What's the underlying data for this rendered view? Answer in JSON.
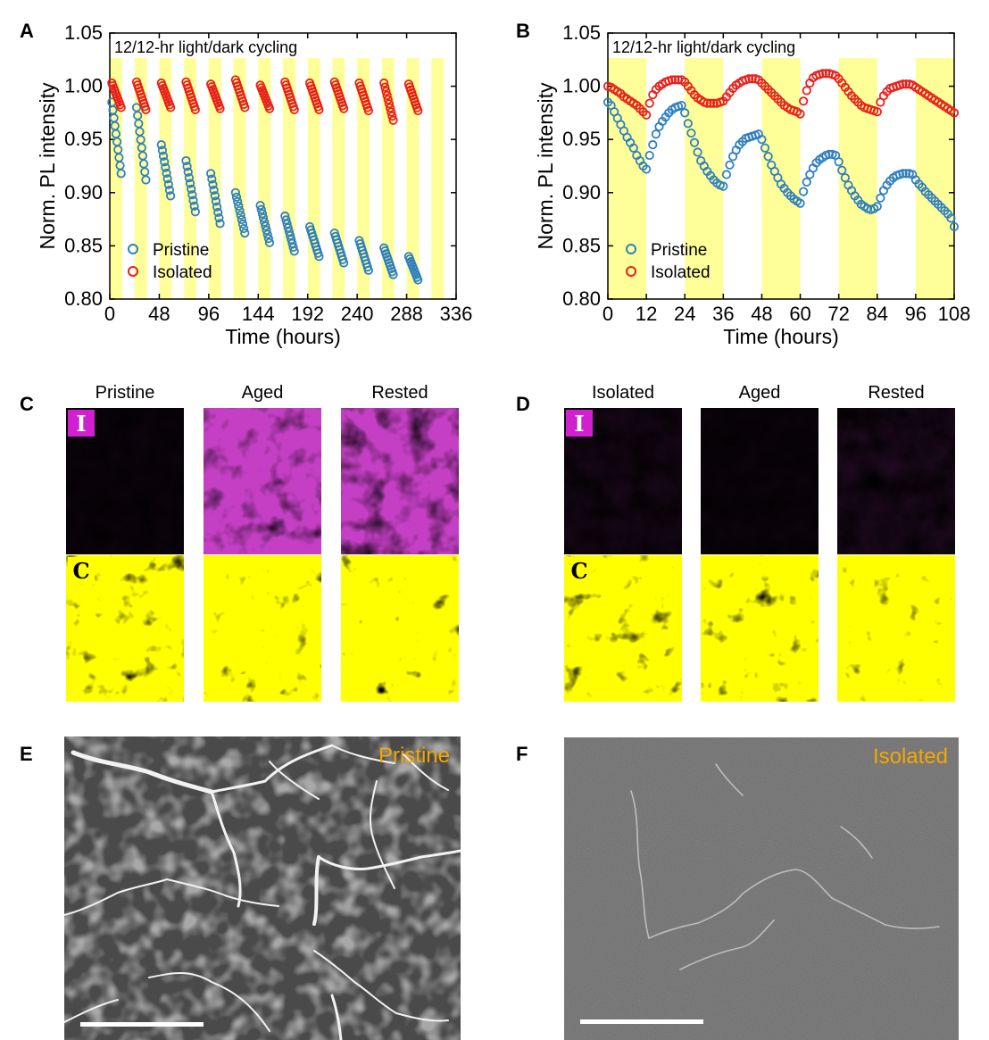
{
  "panels": {
    "A": "A",
    "B": "B",
    "C": "C",
    "D": "D",
    "E": "E",
    "F": "F"
  },
  "colors": {
    "pristine": "#2f7fc1",
    "isolated": "#e8201a",
    "light_band": "#ffff99",
    "iodine": "#d020d0",
    "carbon": "#ffff00",
    "sem_label": "#f5a700"
  },
  "chart_data": [
    {
      "panel": "A",
      "type": "scatter",
      "annotation": "12/12-hr light/dark cycling",
      "xlabel": "Time (hours)",
      "ylabel": "Norm. PL intensity",
      "xlim": [
        0,
        336
      ],
      "ylim": [
        0.8,
        1.05
      ],
      "xticks": [
        0,
        48,
        96,
        144,
        192,
        240,
        288,
        336
      ],
      "yticks": [
        "0.80",
        "0.85",
        "0.90",
        "0.95",
        "1.00",
        "1.05"
      ],
      "light_periods_hours": 12,
      "legend_position": "bottom-left",
      "series": [
        {
          "name": "Pristine",
          "cycle_start": [
            0.985,
            0.98,
            0.945,
            0.93,
            0.918,
            0.9,
            0.888,
            0.878,
            0.868,
            0.862,
            0.855,
            0.848,
            0.84
          ],
          "cycle_end": [
            0.918,
            0.912,
            0.897,
            0.882,
            0.871,
            0.862,
            0.853,
            0.845,
            0.84,
            0.834,
            0.827,
            0.823,
            0.818
          ]
        },
        {
          "name": "Isolated",
          "cycle_start": [
            1.003,
            1.004,
            1.003,
            1.004,
            1.002,
            1.006,
            1.001,
            1.004,
            1.003,
            1.004,
            1.003,
            1.003,
            1.002
          ],
          "cycle_end": [
            0.98,
            0.978,
            0.98,
            0.978,
            0.979,
            0.98,
            0.979,
            0.978,
            0.978,
            0.979,
            0.977,
            0.968,
            0.977
          ]
        }
      ]
    },
    {
      "panel": "B",
      "type": "scatter",
      "annotation": "12/12-hr light/dark cycling",
      "xlabel": "Time (hours)",
      "ylabel": "Norm. PL intensity",
      "xlim": [
        0,
        108
      ],
      "ylim": [
        0.8,
        1.05
      ],
      "xticks": [
        0,
        12,
        24,
        36,
        48,
        60,
        72,
        84,
        96,
        108
      ],
      "yticks": [
        "0.80",
        "0.85",
        "0.90",
        "0.95",
        "1.00",
        "1.05"
      ],
      "light_periods_hours": 12,
      "legend_position": "bottom-left",
      "series": [
        {
          "name": "Pristine",
          "points": [
            [
              0,
              0.985
            ],
            [
              1,
              0.982
            ],
            [
              2,
              0.976
            ],
            [
              3,
              0.97
            ],
            [
              4,
              0.964
            ],
            [
              5,
              0.958
            ],
            [
              6,
              0.952
            ],
            [
              7,
              0.947
            ],
            [
              8,
              0.942
            ],
            [
              9,
              0.935
            ],
            [
              10,
              0.93
            ],
            [
              11,
              0.925
            ],
            [
              12,
              0.922
            ],
            [
              13,
              0.935
            ],
            [
              14,
              0.945
            ],
            [
              15,
              0.955
            ],
            [
              16,
              0.962
            ],
            [
              17,
              0.967
            ],
            [
              18,
              0.971
            ],
            [
              19,
              0.975
            ],
            [
              20,
              0.978
            ],
            [
              21,
              0.98
            ],
            [
              22,
              0.981
            ],
            [
              23,
              0.982
            ],
            [
              24,
              0.975
            ],
            [
              25,
              0.965
            ],
            [
              26,
              0.956
            ],
            [
              27,
              0.947
            ],
            [
              28,
              0.938
            ],
            [
              29,
              0.93
            ],
            [
              30,
              0.925
            ],
            [
              31,
              0.92
            ],
            [
              32,
              0.916
            ],
            [
              33,
              0.912
            ],
            [
              34,
              0.909
            ],
            [
              35,
              0.907
            ],
            [
              36,
              0.906
            ],
            [
              37,
              0.917
            ],
            [
              38,
              0.926
            ],
            [
              39,
              0.934
            ],
            [
              40,
              0.94
            ],
            [
              41,
              0.945
            ],
            [
              42,
              0.948
            ],
            [
              43,
              0.951
            ],
            [
              44,
              0.952
            ],
            [
              45,
              0.953
            ],
            [
              46,
              0.954
            ],
            [
              47,
              0.955
            ],
            [
              48,
              0.95
            ],
            [
              49,
              0.942
            ],
            [
              50,
              0.934
            ],
            [
              51,
              0.926
            ],
            [
              52,
              0.92
            ],
            [
              53,
              0.914
            ],
            [
              54,
              0.908
            ],
            [
              55,
              0.904
            ],
            [
              56,
              0.9
            ],
            [
              57,
              0.897
            ],
            [
              58,
              0.894
            ],
            [
              59,
              0.892
            ],
            [
              60,
              0.89
            ],
            [
              61,
              0.901
            ],
            [
              62,
              0.91
            ],
            [
              63,
              0.917
            ],
            [
              64,
              0.923
            ],
            [
              65,
              0.928
            ],
            [
              66,
              0.931
            ],
            [
              67,
              0.933
            ],
            [
              68,
              0.935
            ],
            [
              69,
              0.936
            ],
            [
              70,
              0.936
            ],
            [
              71,
              0.935
            ],
            [
              72,
              0.929
            ],
            [
              73,
              0.921
            ],
            [
              74,
              0.914
            ],
            [
              75,
              0.907
            ],
            [
              76,
              0.902
            ],
            [
              77,
              0.897
            ],
            [
              78,
              0.893
            ],
            [
              79,
              0.889
            ],
            [
              80,
              0.887
            ],
            [
              81,
              0.885
            ],
            [
              82,
              0.884
            ],
            [
              83,
              0.885
            ],
            [
              84,
              0.887
            ],
            [
              85,
              0.895
            ],
            [
              86,
              0.902
            ],
            [
              87,
              0.907
            ],
            [
              88,
              0.911
            ],
            [
              89,
              0.914
            ],
            [
              90,
              0.916
            ],
            [
              91,
              0.917
            ],
            [
              92,
              0.918
            ],
            [
              93,
              0.918
            ],
            [
              94,
              0.918
            ],
            [
              95,
              0.917
            ],
            [
              96,
              0.912
            ],
            [
              97,
              0.908
            ],
            [
              98,
              0.905
            ],
            [
              99,
              0.901
            ],
            [
              100,
              0.898
            ],
            [
              101,
              0.895
            ],
            [
              102,
              0.892
            ],
            [
              103,
              0.889
            ],
            [
              104,
              0.886
            ],
            [
              105,
              0.883
            ],
            [
              106,
              0.88
            ],
            [
              107,
              0.876
            ],
            [
              108,
              0.868
            ]
          ]
        },
        {
          "name": "Isolated",
          "points": [
            [
              0,
              1.0
            ],
            [
              1,
              0.999
            ],
            [
              2,
              0.997
            ],
            [
              3,
              0.995
            ],
            [
              4,
              0.993
            ],
            [
              5,
              0.99
            ],
            [
              6,
              0.988
            ],
            [
              7,
              0.986
            ],
            [
              8,
              0.984
            ],
            [
              9,
              0.982
            ],
            [
              10,
              0.979
            ],
            [
              11,
              0.976
            ],
            [
              12,
              0.973
            ],
            [
              13,
              0.984
            ],
            [
              14,
              0.992
            ],
            [
              15,
              0.997
            ],
            [
              16,
              1.0
            ],
            [
              17,
              1.002
            ],
            [
              18,
              1.004
            ],
            [
              19,
              1.005
            ],
            [
              20,
              1.006
            ],
            [
              21,
              1.006
            ],
            [
              22,
              1.006
            ],
            [
              23,
              1.006
            ],
            [
              24,
              1.004
            ],
            [
              25,
              1.0
            ],
            [
              26,
              0.996
            ],
            [
              27,
              0.992
            ],
            [
              28,
              0.989
            ],
            [
              29,
              0.987
            ],
            [
              30,
              0.985
            ],
            [
              31,
              0.984
            ],
            [
              32,
              0.984
            ],
            [
              33,
              0.984
            ],
            [
              34,
              0.984
            ],
            [
              35,
              0.985
            ],
            [
              36,
              0.986
            ],
            [
              37,
              0.99
            ],
            [
              38,
              0.994
            ],
            [
              39,
              0.998
            ],
            [
              40,
              1.001
            ],
            [
              41,
              1.003
            ],
            [
              42,
              1.005
            ],
            [
              43,
              1.006
            ],
            [
              44,
              1.007
            ],
            [
              45,
              1.007
            ],
            [
              46,
              1.007
            ],
            [
              47,
              1.006
            ],
            [
              48,
              1.003
            ],
            [
              49,
              1.0
            ],
            [
              50,
              0.997
            ],
            [
              51,
              0.994
            ],
            [
              52,
              0.991
            ],
            [
              53,
              0.988
            ],
            [
              54,
              0.985
            ],
            [
              55,
              0.982
            ],
            [
              56,
              0.98
            ],
            [
              57,
              0.978
            ],
            [
              58,
              0.977
            ],
            [
              59,
              0.976
            ],
            [
              60,
              0.974
            ],
            [
              61,
              0.986
            ],
            [
              62,
              0.996
            ],
            [
              63,
              1.003
            ],
            [
              64,
              1.008
            ],
            [
              65,
              1.01
            ],
            [
              66,
              1.011
            ],
            [
              67,
              1.012
            ],
            [
              68,
              1.012
            ],
            [
              69,
              1.012
            ],
            [
              70,
              1.011
            ],
            [
              71,
              1.01
            ],
            [
              72,
              1.007
            ],
            [
              73,
              1.003
            ],
            [
              74,
              0.999
            ],
            [
              75,
              0.995
            ],
            [
              76,
              0.991
            ],
            [
              77,
              0.988
            ],
            [
              78,
              0.985
            ],
            [
              79,
              0.982
            ],
            [
              80,
              0.98
            ],
            [
              81,
              0.979
            ],
            [
              82,
              0.978
            ],
            [
              83,
              0.977
            ],
            [
              84,
              0.976
            ],
            [
              85,
              0.985
            ],
            [
              86,
              0.991
            ],
            [
              87,
              0.995
            ],
            [
              88,
              0.998
            ],
            [
              89,
              0.999
            ],
            [
              90,
              1.0
            ],
            [
              91,
              1.001
            ],
            [
              92,
              1.002
            ],
            [
              93,
              1.002
            ],
            [
              94,
              1.002
            ],
            [
              95,
              1.001
            ],
            [
              96,
              0.999
            ],
            [
              97,
              0.997
            ],
            [
              98,
              0.995
            ],
            [
              99,
              0.993
            ],
            [
              100,
              0.991
            ],
            [
              101,
              0.989
            ],
            [
              102,
              0.987
            ],
            [
              103,
              0.985
            ],
            [
              104,
              0.983
            ],
            [
              105,
              0.981
            ],
            [
              106,
              0.979
            ],
            [
              107,
              0.977
            ],
            [
              108,
              0.975
            ]
          ]
        }
      ]
    }
  ],
  "maps": {
    "C": {
      "titles": [
        "Pristine",
        "Aged",
        "Rested"
      ],
      "iodine_level": [
        0.02,
        0.55,
        0.5
      ],
      "carbon_level": [
        0.65,
        0.7,
        0.8
      ]
    },
    "D": {
      "titles": [
        "Isolated",
        "Aged",
        "Rested"
      ],
      "iodine_level": [
        0.04,
        0.02,
        0.05
      ],
      "carbon_level": [
        0.7,
        0.7,
        0.75
      ]
    },
    "badges": {
      "iodine": "I",
      "carbon": "C"
    }
  },
  "sem": {
    "E": {
      "label": "Pristine"
    },
    "F": {
      "label": "Isolated"
    }
  }
}
